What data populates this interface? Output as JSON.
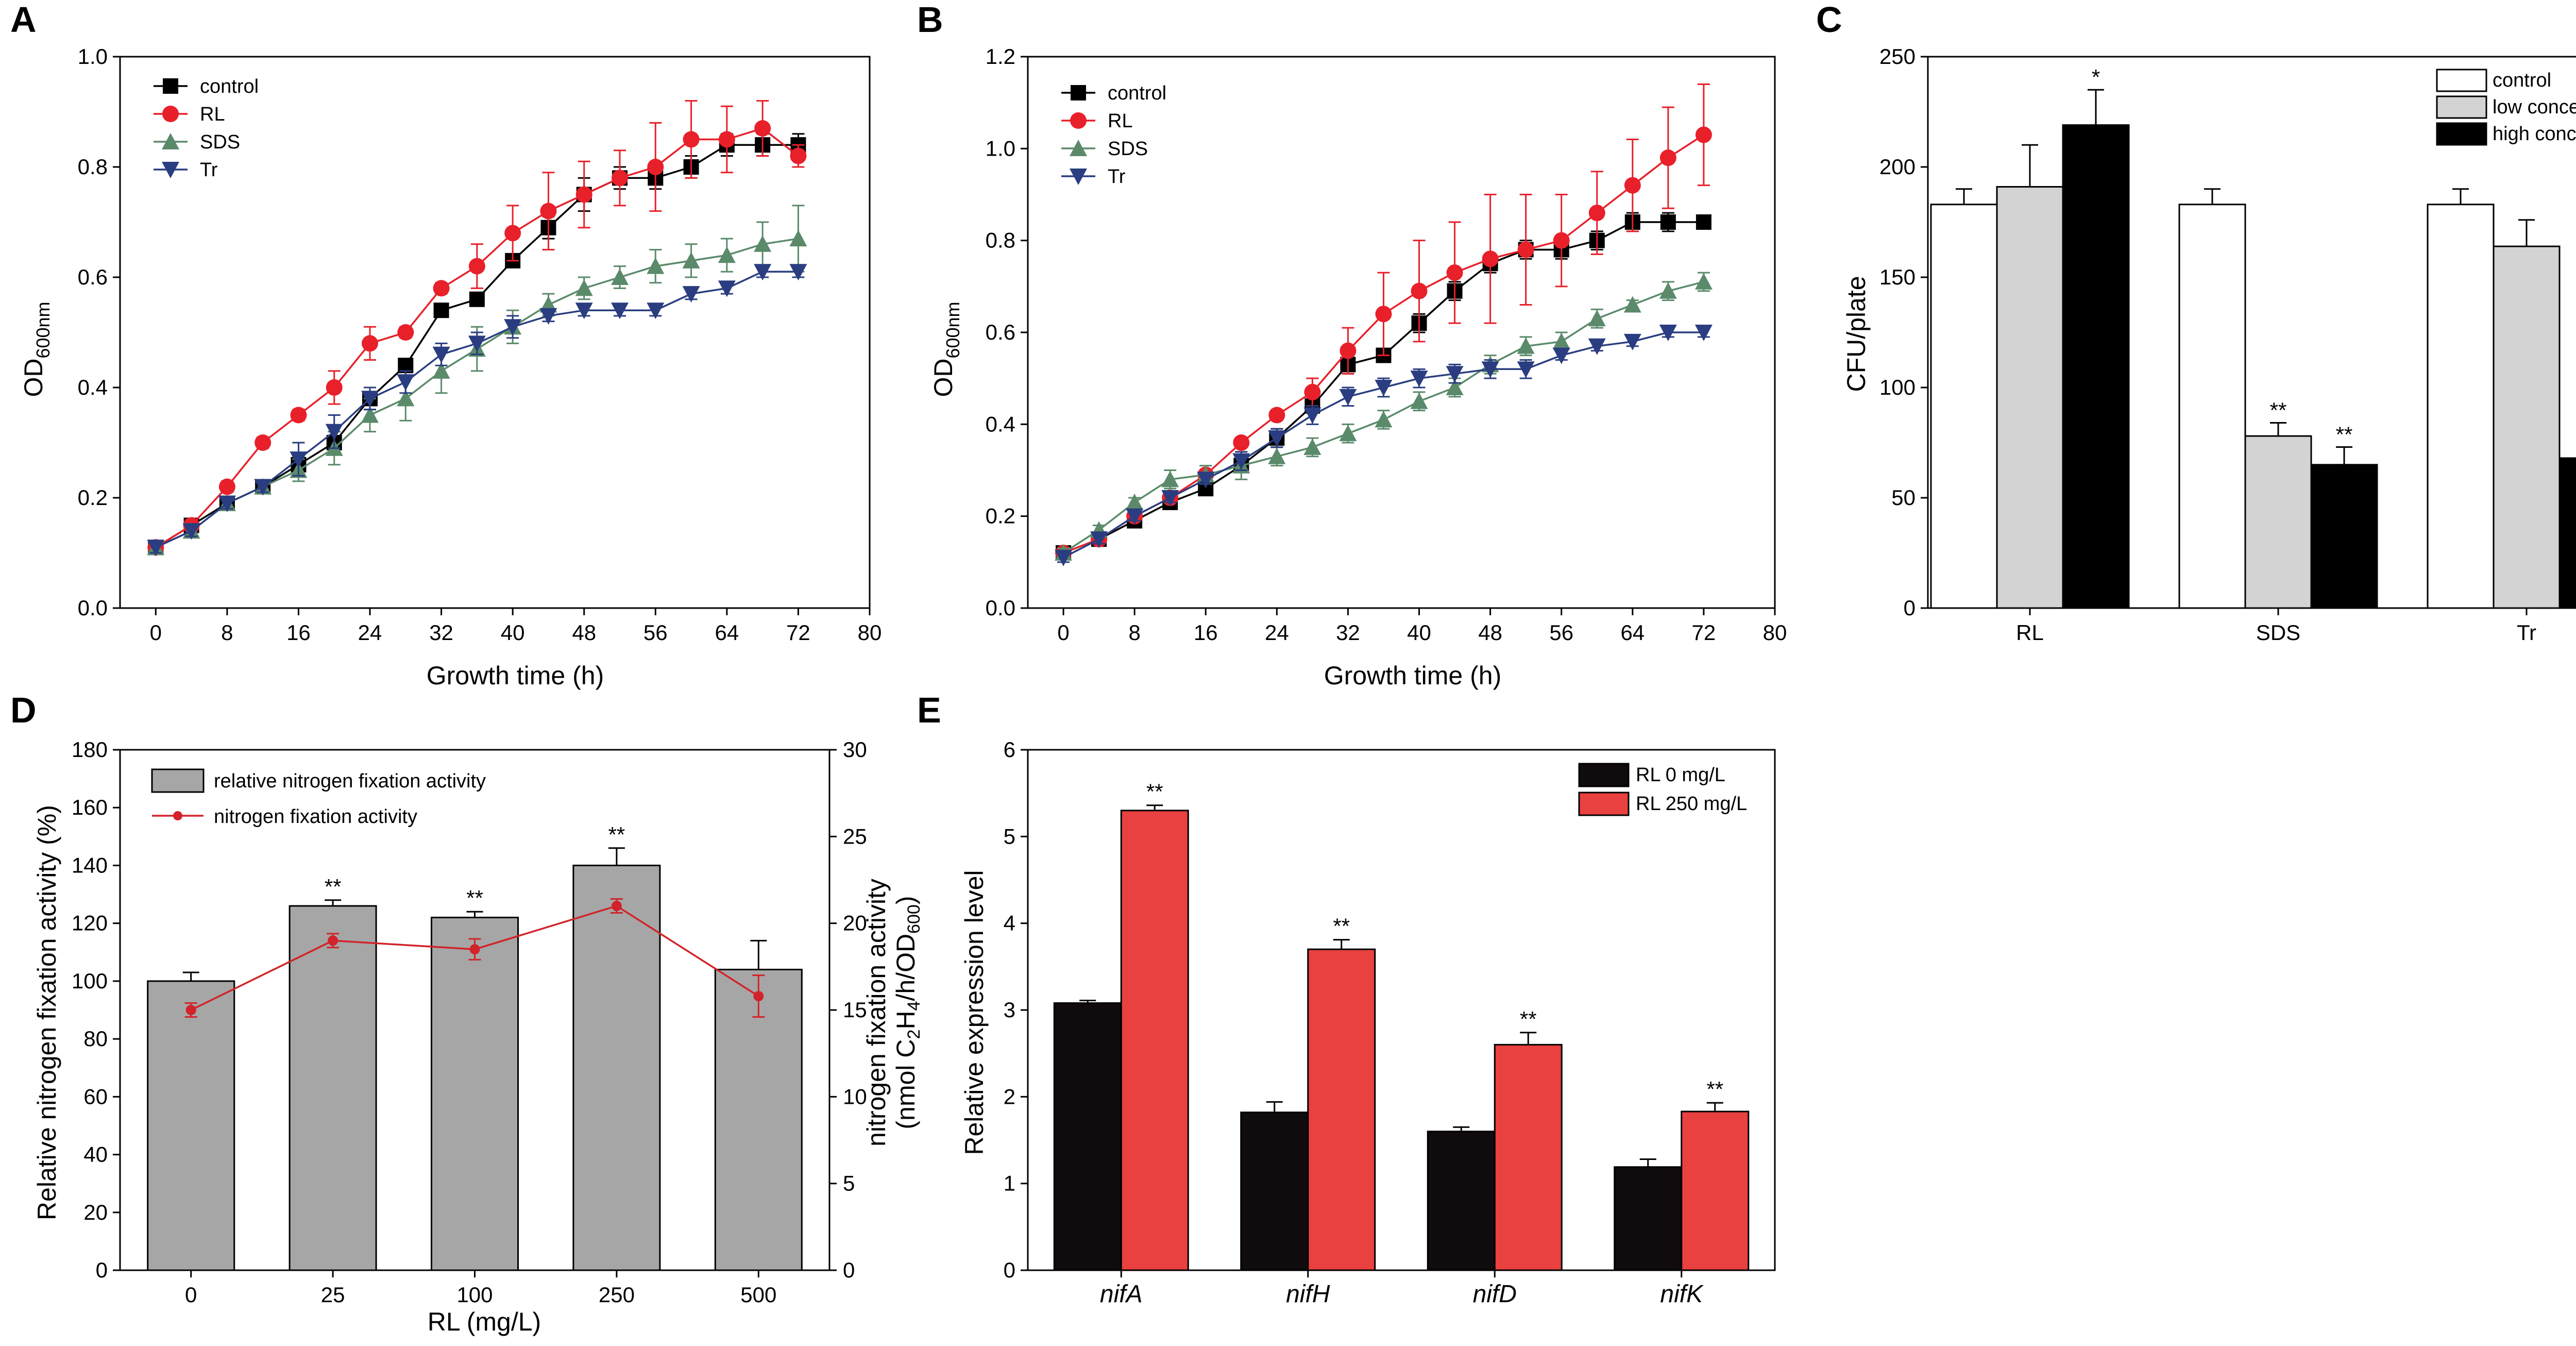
{
  "panels": {
    "A": {
      "letter": "A",
      "chart_data": {
        "type": "line",
        "title": "",
        "xlabel": "Growth time (h)",
        "ylabel_main": "OD",
        "ylabel_sub": "600nm",
        "xlim": [
          -4,
          80
        ],
        "ylim": [
          0,
          1.0
        ],
        "xticks": [
          "0",
          "8",
          "16",
          "24",
          "32",
          "40",
          "48",
          "56",
          "64",
          "72",
          "80"
        ],
        "yticks": [
          "0.0",
          "0.2",
          "0.4",
          "0.6",
          "0.8",
          "1.0"
        ],
        "legend": [
          "control",
          "RL",
          "SDS",
          "Tr"
        ],
        "x": [
          0,
          4,
          8,
          12,
          16,
          20,
          24,
          28,
          32,
          36,
          40,
          44,
          48,
          52,
          56,
          60,
          64,
          68,
          72
        ],
        "series": [
          {
            "name": "control",
            "color": "#000000",
            "marker": "square",
            "values": [
              0.11,
              0.15,
              0.19,
              0.22,
              0.26,
              0.3,
              0.38,
              0.44,
              0.54,
              0.56,
              0.63,
              0.69,
              0.75,
              0.78,
              0.78,
              0.8,
              0.84,
              0.84,
              0.84
            ],
            "errors": [
              0.01,
              0.01,
              0.01,
              0.01,
              0.01,
              0.02,
              0.02,
              0.01,
              0.01,
              0.01,
              0.01,
              0.02,
              0.03,
              0.02,
              0.02,
              0.02,
              0.02,
              0.02,
              0.02
            ]
          },
          {
            "name": "RL",
            "color": "#e8202a",
            "marker": "circle",
            "values": [
              0.11,
              0.15,
              0.22,
              0.3,
              0.35,
              0.4,
              0.48,
              0.5,
              0.58,
              0.62,
              0.68,
              0.72,
              0.75,
              0.78,
              0.8,
              0.85,
              0.85,
              0.87,
              0.82
            ],
            "errors": [
              0.01,
              0.01,
              0.01,
              0.01,
              0.01,
              0.03,
              0.03,
              0.01,
              0.01,
              0.04,
              0.05,
              0.07,
              0.06,
              0.05,
              0.08,
              0.07,
              0.06,
              0.05,
              0.02
            ]
          },
          {
            "name": "SDS",
            "color": "#5a8a6a",
            "marker": "triangle",
            "values": [
              0.11,
              0.14,
              0.19,
              0.22,
              0.25,
              0.29,
              0.35,
              0.38,
              0.43,
              0.47,
              0.51,
              0.55,
              0.58,
              0.6,
              0.62,
              0.63,
              0.64,
              0.66,
              0.67
            ],
            "errors": [
              0.01,
              0.01,
              0.01,
              0.01,
              0.02,
              0.03,
              0.03,
              0.04,
              0.04,
              0.04,
              0.03,
              0.02,
              0.02,
              0.02,
              0.03,
              0.03,
              0.03,
              0.04,
              0.06
            ]
          },
          {
            "name": "Tr",
            "color": "#2a3d80",
            "marker": "triangle-down",
            "values": [
              0.11,
              0.14,
              0.19,
              0.22,
              0.27,
              0.32,
              0.38,
              0.41,
              0.46,
              0.48,
              0.51,
              0.53,
              0.54,
              0.54,
              0.54,
              0.57,
              0.58,
              0.61,
              0.61
            ],
            "errors": [
              0.01,
              0.01,
              0.01,
              0.01,
              0.03,
              0.03,
              0.02,
              0.02,
              0.02,
              0.02,
              0.02,
              0.01,
              0.01,
              0.01,
              0.01,
              0.01,
              0.01,
              0.01,
              0.01
            ]
          }
        ]
      }
    },
    "B": {
      "letter": "B",
      "chart_data": {
        "type": "line",
        "title": "",
        "xlabel": "Growth time (h)",
        "ylabel_main": "OD",
        "ylabel_sub": "600nm",
        "xlim": [
          -4,
          80
        ],
        "ylim": [
          0,
          1.2
        ],
        "xticks": [
          "0",
          "8",
          "16",
          "24",
          "32",
          "40",
          "48",
          "56",
          "64",
          "72",
          "80"
        ],
        "yticks": [
          "0.0",
          "0.2",
          "0.4",
          "0.6",
          "0.8",
          "1.0",
          "1.2"
        ],
        "legend": [
          "control",
          "RL",
          "SDS",
          "Tr"
        ],
        "x": [
          0,
          4,
          8,
          12,
          16,
          20,
          24,
          28,
          32,
          36,
          40,
          44,
          48,
          52,
          56,
          60,
          64,
          68,
          72
        ],
        "series": [
          {
            "name": "control",
            "color": "#000000",
            "marker": "square",
            "values": [
              0.12,
              0.15,
              0.19,
              0.23,
              0.26,
              0.31,
              0.37,
              0.44,
              0.53,
              0.55,
              0.62,
              0.69,
              0.75,
              0.78,
              0.78,
              0.8,
              0.84,
              0.84,
              0.84
            ],
            "errors": [
              0.01,
              0.01,
              0.01,
              0.01,
              0.01,
              0.01,
              0.02,
              0.01,
              0.02,
              0.01,
              0.02,
              0.02,
              0.02,
              0.02,
              0.02,
              0.02,
              0.02,
              0.02,
              0.01
            ]
          },
          {
            "name": "RL",
            "color": "#e8202a",
            "marker": "circle",
            "values": [
              0.12,
              0.15,
              0.2,
              0.24,
              0.29,
              0.36,
              0.42,
              0.47,
              0.56,
              0.64,
              0.69,
              0.73,
              0.76,
              0.78,
              0.8,
              0.86,
              0.92,
              0.98,
              1.03
            ],
            "errors": [
              0.01,
              0.01,
              0.01,
              0.01,
              0.01,
              0.01,
              0.01,
              0.03,
              0.05,
              0.09,
              0.11,
              0.11,
              0.14,
              0.12,
              0.1,
              0.09,
              0.1,
              0.11,
              0.11
            ]
          },
          {
            "name": "SDS",
            "color": "#5a8a6a",
            "marker": "triangle",
            "values": [
              0.12,
              0.17,
              0.23,
              0.28,
              0.29,
              0.31,
              0.33,
              0.35,
              0.38,
              0.41,
              0.45,
              0.48,
              0.53,
              0.57,
              0.58,
              0.63,
              0.66,
              0.69,
              0.71
            ],
            "errors": [
              0.01,
              0.01,
              0.01,
              0.02,
              0.02,
              0.03,
              0.02,
              0.02,
              0.02,
              0.02,
              0.02,
              0.02,
              0.02,
              0.02,
              0.02,
              0.02,
              0.01,
              0.02,
              0.02
            ]
          },
          {
            "name": "Tr",
            "color": "#2a3d80",
            "marker": "triangle-down",
            "values": [
              0.11,
              0.15,
              0.2,
              0.24,
              0.28,
              0.32,
              0.37,
              0.42,
              0.46,
              0.48,
              0.5,
              0.51,
              0.52,
              0.52,
              0.55,
              0.57,
              0.58,
              0.6,
              0.6
            ],
            "errors": [
              0.01,
              0.01,
              0.01,
              0.01,
              0.01,
              0.02,
              0.02,
              0.02,
              0.02,
              0.02,
              0.02,
              0.02,
              0.02,
              0.02,
              0.01,
              0.01,
              0.01,
              0.01,
              0.01
            ]
          }
        ]
      }
    },
    "C": {
      "letter": "C",
      "chart_data": {
        "type": "bar",
        "title": "",
        "xlabel": "",
        "ylabel": "CFU/plate",
        "ylim": [
          0,
          250
        ],
        "yticks": [
          "0",
          "50",
          "100",
          "150",
          "200",
          "250"
        ],
        "categories": [
          "RL",
          "SDS",
          "Tr"
        ],
        "series": [
          {
            "name": "control",
            "color": "#ffffff",
            "values": [
              183,
              183,
              183
            ],
            "errors": [
              7,
              7,
              7
            ],
            "sig": [
              "",
              "",
              ""
            ]
          },
          {
            "name": "low concentration",
            "color": "#d3d3d3",
            "values": [
              191,
              78,
              164
            ],
            "errors": [
              19,
              6,
              12
            ],
            "sig": [
              "",
              "**",
              ""
            ]
          },
          {
            "name": "high concentration",
            "color": "#000000",
            "values": [
              219,
              65,
              68
            ],
            "errors": [
              16,
              8,
              5
            ],
            "sig": [
              "*",
              "**",
              "**"
            ]
          }
        ]
      }
    },
    "D": {
      "letter": "D",
      "chart_data": {
        "type": "bar",
        "title": "",
        "xlabel": "RL (mg/L)",
        "ylabel": "Relative nitrogen fixation activity (%)",
        "ylabel_right_1": "nitrogen fixation activity",
        "ylabel_right_2": "(nmol C",
        "ylabel_right_sub1": "2",
        "ylabel_right_mid": "H",
        "ylabel_right_sub2": "4",
        "ylabel_right_tail": "/h/OD",
        "ylabel_right_sub3": "600",
        "ylabel_right_end": ")",
        "ylim": [
          0,
          180
        ],
        "ylim_right": [
          0,
          30
        ],
        "yticks": [
          "0",
          "20",
          "40",
          "60",
          "80",
          "100",
          "120",
          "140",
          "160",
          "180"
        ],
        "yticks_right": [
          "0",
          "5",
          "10",
          "15",
          "20",
          "25",
          "30"
        ],
        "categories": [
          "0",
          "25",
          "100",
          "250",
          "500"
        ],
        "bars": {
          "name": "relative nitrogen fixation activity",
          "color": "#a6a6a6",
          "values": [
            100,
            126,
            122,
            140,
            104
          ],
          "errors": [
            3,
            2,
            2,
            6,
            10
          ],
          "sig": [
            "",
            "**",
            "**",
            "**",
            ""
          ]
        },
        "line": {
          "name": "nitrogen fixation activity",
          "color": "#d2232a",
          "values": [
            15,
            19,
            18.5,
            21,
            15.8
          ],
          "errors": [
            0.4,
            0.4,
            0.6,
            0.4,
            1.2
          ]
        }
      }
    },
    "E": {
      "letter": "E",
      "chart_data": {
        "type": "bar",
        "title": "",
        "xlabel": "",
        "ylabel": "Relative expression level",
        "ylim": [
          0,
          6
        ],
        "yticks": [
          "0",
          "1",
          "2",
          "3",
          "4",
          "5",
          "6"
        ],
        "categories": [
          "nifA",
          "nifH",
          "nifD",
          "nifK"
        ],
        "series": [
          {
            "name": "RL 0 mg/L",
            "color": "#100b0c",
            "values": [
              3.08,
              1.82,
              1.6,
              1.19
            ],
            "errors": [
              0.03,
              0.12,
              0.05,
              0.09
            ],
            "sig": [
              "",
              "",
              "",
              ""
            ]
          },
          {
            "name": "RL 250 mg/L",
            "color": "#e8413f",
            "values": [
              5.3,
              3.7,
              2.6,
              1.83
            ],
            "errors": [
              0.06,
              0.11,
              0.14,
              0.1
            ],
            "sig": [
              "**",
              "**",
              "**",
              "**"
            ]
          }
        ]
      }
    }
  }
}
